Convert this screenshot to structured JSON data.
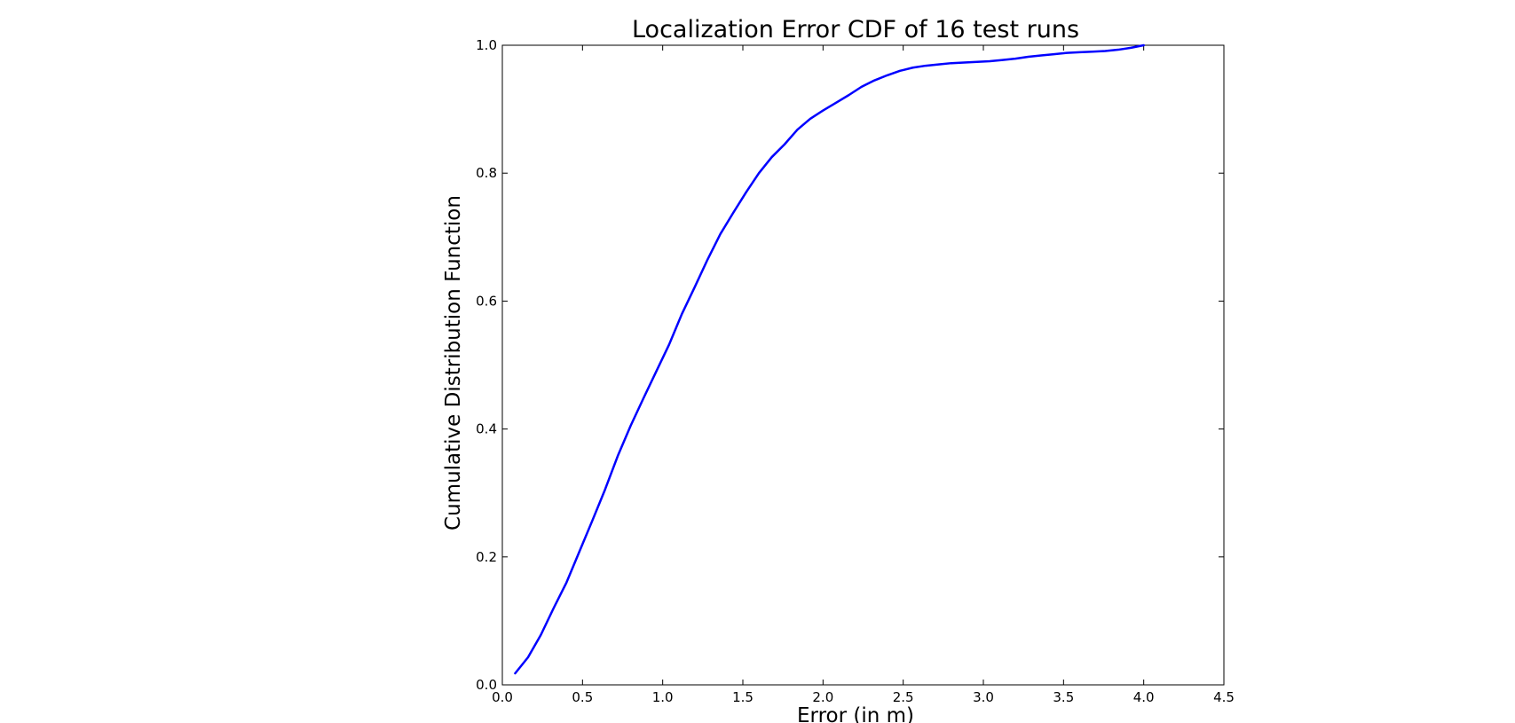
{
  "chart_data": {
    "type": "line",
    "title": "Localization Error CDF of 16 test runs",
    "xlabel": "Error (in m)",
    "ylabel": "Cumulative Distribution Function",
    "xlim": [
      0.0,
      4.5
    ],
    "ylim": [
      0.0,
      1.0
    ],
    "xticks": [
      "0.0",
      "0.5",
      "1.0",
      "1.5",
      "2.0",
      "2.5",
      "3.0",
      "3.5",
      "4.0",
      "4.5"
    ],
    "yticks": [
      "0.0",
      "0.2",
      "0.4",
      "0.6",
      "0.8",
      "1.0"
    ],
    "grid": false,
    "series": [
      {
        "color": "#0000ff",
        "x": [
          0.08,
          0.16,
          0.24,
          0.32,
          0.4,
          0.48,
          0.56,
          0.64,
          0.72,
          0.8,
          0.88,
          0.96,
          1.04,
          1.12,
          1.2,
          1.28,
          1.36,
          1.44,
          1.52,
          1.6,
          1.68,
          1.76,
          1.84,
          1.92,
          2.0,
          2.08,
          2.16,
          2.24,
          2.32,
          2.4,
          2.48,
          2.56,
          2.64,
          2.72,
          2.8,
          2.88,
          2.96,
          3.04,
          3.12,
          3.2,
          3.28,
          3.36,
          3.44,
          3.52,
          3.6,
          3.68,
          3.76,
          3.84,
          3.92,
          4.0
        ],
        "values": [
          0.018,
          0.043,
          0.078,
          0.12,
          0.16,
          0.208,
          0.256,
          0.305,
          0.358,
          0.405,
          0.448,
          0.49,
          0.532,
          0.58,
          0.622,
          0.665,
          0.705,
          0.738,
          0.77,
          0.8,
          0.825,
          0.845,
          0.868,
          0.885,
          0.898,
          0.91,
          0.922,
          0.935,
          0.945,
          0.953,
          0.96,
          0.965,
          0.968,
          0.97,
          0.972,
          0.973,
          0.974,
          0.975,
          0.977,
          0.979,
          0.982,
          0.984,
          0.986,
          0.988,
          0.989,
          0.99,
          0.991,
          0.993,
          0.996,
          1.0
        ]
      }
    ]
  }
}
